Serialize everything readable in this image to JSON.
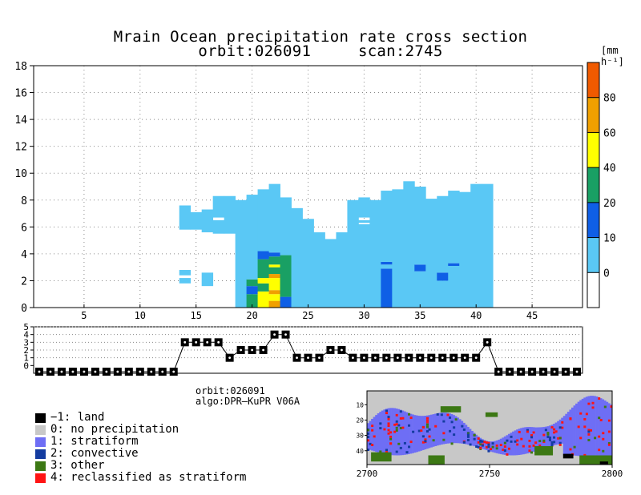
{
  "chart_data": [
    {
      "type": "heatmap",
      "title": "Mrain Ocean precipitation rate cross section",
      "subtitle": "orbit:026091     scan:2745",
      "xlabel": "",
      "ylabel": "",
      "xlim": [
        1,
        49
      ],
      "ylim": [
        0,
        18
      ],
      "x_ticks": [
        5,
        10,
        15,
        20,
        25,
        30,
        35,
        40,
        45
      ],
      "y_ticks": [
        0,
        2,
        4,
        6,
        8,
        10,
        12,
        14,
        16,
        18
      ],
      "grid": true,
      "colorbar": {
        "units": "[mm h⁻¹]",
        "labels": [
          "0",
          "10",
          "20",
          "40",
          "60",
          "80"
        ],
        "colors": [
          "#ffffff",
          "#5ac8f5",
          "#0f5fe6",
          "#19a064",
          "#ffff00",
          "#f0a000",
          "#f05a00"
        ]
      },
      "columns": [
        {
          "ray": 14,
          "top": 7.6,
          "bins": [
            [
              1.8,
              2.2,
              1
            ],
            [
              2.4,
              2.8,
              1
            ],
            [
              5.8,
              7.6,
              1
            ]
          ]
        },
        {
          "ray": 15,
          "top": 7.1,
          "bins": [
            [
              5.8,
              7.1,
              1
            ]
          ]
        },
        {
          "ray": 16,
          "top": 7.3,
          "bins": [
            [
              1.6,
              2.6,
              1
            ],
            [
              5.6,
              7.3,
              1
            ]
          ]
        },
        {
          "ray": 17,
          "top": 8.3,
          "bins": [
            [
              5.5,
              6.5,
              1
            ],
            [
              6.7,
              8.3,
              1
            ]
          ]
        },
        {
          "ray": 18,
          "top": 8.3,
          "bins": [
            [
              5.5,
              8.3,
              1
            ]
          ]
        },
        {
          "ray": 19,
          "top": 8.0,
          "bins": [
            [
              0,
              8.0,
              1
            ]
          ]
        },
        {
          "ray": 20,
          "top": 8.4,
          "bins": [
            [
              0,
              1.0,
              3
            ],
            [
              1.0,
              1.6,
              2
            ],
            [
              1.6,
              2.1,
              3
            ],
            [
              2.1,
              8.4,
              1
            ]
          ]
        },
        {
          "ray": 21,
          "top": 8.8,
          "bins": [
            [
              0,
              1.2,
              4
            ],
            [
              1.2,
              1.8,
              3
            ],
            [
              1.8,
              2.2,
              4
            ],
            [
              2.2,
              3.6,
              3
            ],
            [
              3.6,
              4.2,
              2
            ],
            [
              4.2,
              8.8,
              1
            ]
          ]
        },
        {
          "ray": 22,
          "top": 9.2,
          "bins": [
            [
              0,
              0.5,
              5
            ],
            [
              0.5,
              1.0,
              4
            ],
            [
              1.0,
              1.3,
              5
            ],
            [
              1.3,
              2.2,
              4
            ],
            [
              2.2,
              2.5,
              5
            ],
            [
              2.5,
              3.0,
              3
            ],
            [
              3.0,
              3.2,
              4
            ],
            [
              3.2,
              3.8,
              3
            ],
            [
              3.8,
              4.1,
              2
            ],
            [
              4.1,
              9.2,
              1
            ]
          ]
        },
        {
          "ray": 23,
          "top": 8.2,
          "bins": [
            [
              0,
              0.8,
              2
            ],
            [
              0.8,
              3.9,
              3
            ],
            [
              3.9,
              8.2,
              1
            ]
          ]
        },
        {
          "ray": 24,
          "top": 7.4,
          "bins": [
            [
              0,
              7.4,
              1
            ]
          ]
        },
        {
          "ray": 25,
          "top": 6.6,
          "bins": [
            [
              0,
              6.6,
              1
            ]
          ]
        },
        {
          "ray": 26,
          "top": 5.6,
          "bins": [
            [
              0,
              5.6,
              1
            ]
          ]
        },
        {
          "ray": 27,
          "top": 5.1,
          "bins": [
            [
              0,
              5.1,
              1
            ]
          ]
        },
        {
          "ray": 28,
          "top": 5.6,
          "bins": [
            [
              0,
              5.6,
              1
            ]
          ]
        },
        {
          "ray": 29,
          "top": 8.0,
          "bins": [
            [
              0,
              8.0,
              1
            ]
          ]
        },
        {
          "ray": 30,
          "top": 8.2,
          "bins": [
            [
              0,
              6.2,
              1
            ],
            [
              6.3,
              6.5,
              1
            ],
            [
              6.7,
              8.2,
              1
            ]
          ]
        },
        {
          "ray": 31,
          "top": 8.0,
          "bins": [
            [
              0,
              8.0,
              1
            ]
          ]
        },
        {
          "ray": 32,
          "top": 8.7,
          "bins": [
            [
              0,
              2.9,
              2
            ],
            [
              2.9,
              3.2,
              1
            ],
            [
              3.2,
              3.4,
              2
            ],
            [
              3.4,
              8.7,
              1
            ]
          ]
        },
        {
          "ray": 33,
          "top": 8.8,
          "bins": [
            [
              0,
              8.8,
              1
            ]
          ]
        },
        {
          "ray": 34,
          "top": 9.4,
          "bins": [
            [
              0,
              9.4,
              1
            ]
          ]
        },
        {
          "ray": 35,
          "top": 9.0,
          "bins": [
            [
              0,
              2.7,
              1
            ],
            [
              2.7,
              3.2,
              2
            ],
            [
              3.2,
              9.0,
              1
            ]
          ]
        },
        {
          "ray": 36,
          "top": 8.1,
          "bins": [
            [
              0,
              8.1,
              1
            ]
          ]
        },
        {
          "ray": 37,
          "top": 8.3,
          "bins": [
            [
              0,
              2.0,
              1
            ],
            [
              2.0,
              2.6,
              2
            ],
            [
              2.6,
              8.3,
              1
            ]
          ]
        },
        {
          "ray": 38,
          "top": 8.7,
          "bins": [
            [
              0,
              3.1,
              1
            ],
            [
              3.1,
              3.3,
              2
            ],
            [
              3.3,
              8.7,
              1
            ]
          ]
        },
        {
          "ray": 39,
          "top": 8.6,
          "bins": [
            [
              0,
              8.6,
              1
            ]
          ]
        },
        {
          "ray": 40,
          "top": 9.2,
          "bins": [
            [
              0,
              9.2,
              1
            ]
          ]
        },
        {
          "ray": 41,
          "top": 9.2,
          "bins": [
            [
              0,
              9.2,
              1
            ]
          ]
        }
      ]
    },
    {
      "type": "line",
      "title": "",
      "xlim": [
        1,
        49
      ],
      "ylim": [
        -1,
        5
      ],
      "y_ticks": [
        0,
        1,
        2,
        3,
        4,
        5
      ],
      "x": [
        1,
        2,
        3,
        4,
        5,
        6,
        7,
        8,
        9,
        10,
        11,
        12,
        13,
        14,
        15,
        16,
        17,
        18,
        19,
        20,
        21,
        22,
        23,
        24,
        25,
        26,
        27,
        28,
        29,
        30,
        31,
        32,
        33,
        34,
        35,
        36,
        37,
        38,
        39,
        40,
        41,
        42,
        43,
        44,
        45,
        46,
        47,
        48,
        49
      ],
      "values": [
        -1,
        -1,
        -1,
        -1,
        -1,
        -1,
        -1,
        -1,
        -1,
        -1,
        -1,
        -1,
        -1,
        3,
        3,
        3,
        3,
        1,
        2,
        2,
        2,
        4,
        4,
        1,
        1,
        1,
        2,
        2,
        1,
        1,
        1,
        1,
        1,
        1,
        1,
        1,
        1,
        1,
        1,
        1,
        3,
        -1,
        -1,
        -1,
        -1,
        -1,
        -1,
        -1,
        -1
      ]
    },
    {
      "type": "heatmap",
      "title": "",
      "x_ticks": [
        2700,
        2750,
        2800
      ],
      "y_ticks": [
        10,
        20,
        30,
        40
      ],
      "xlim": [
        2700,
        2800
      ],
      "ylim": [
        49,
        1
      ]
    }
  ],
  "info": {
    "orbit": "orbit:026091",
    "algo": "algo:DPR–KuPR V06A"
  },
  "legend": [
    {
      "label": "−1: land",
      "color": "#000000"
    },
    {
      "label": "0: no precipitation",
      "color": "#c8c8c8"
    },
    {
      "label": "1: stratiform",
      "color": "#6e6ef5"
    },
    {
      "label": "2: convective",
      "color": "#143ca0"
    },
    {
      "label": "3: other",
      "color": "#3c7814"
    },
    {
      "label": "4: reclassified as stratiform",
      "color": "#ff1414"
    }
  ]
}
